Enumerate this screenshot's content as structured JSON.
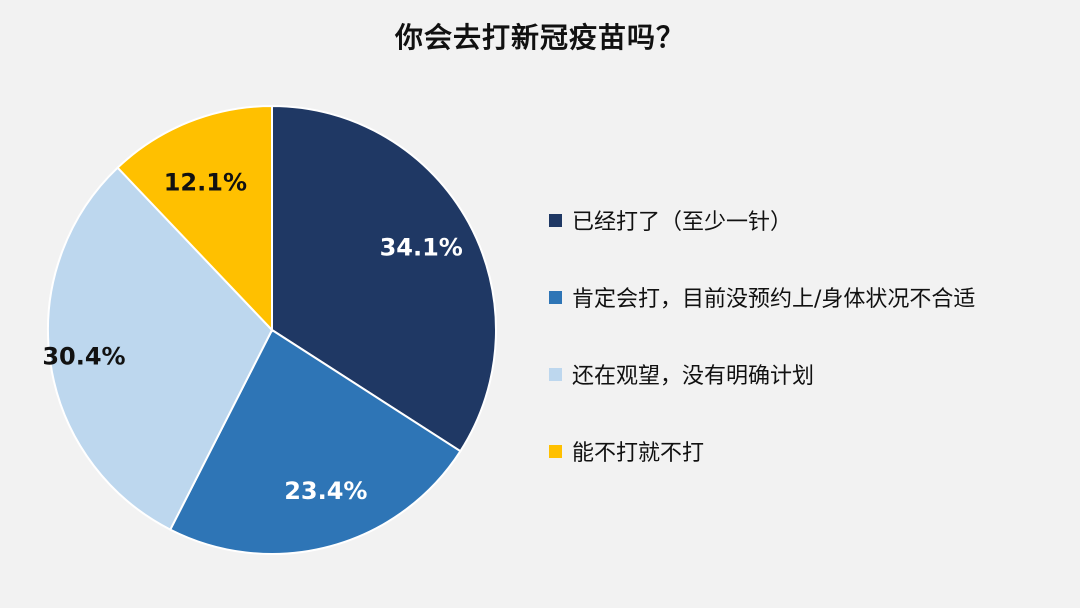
{
  "chart_data": {
    "type": "pie",
    "title": "你会去打新冠疫苗吗？",
    "legend_position": "right",
    "slices": [
      {
        "label": "已经打了（至少一针）",
        "value": 34.1,
        "display": "34.1%",
        "color": "#1f3864",
        "text_color": "#ffffff"
      },
      {
        "label": "肯定会打，目前没预约上/身体状况不合适",
        "value": 23.4,
        "display": "23.4%",
        "color": "#2e75b6",
        "text_color": "#ffffff"
      },
      {
        "label": "还在观望，没有明确计划",
        "value": 30.4,
        "display": "30.4%",
        "color": "#bdd7ee",
        "text_color": "#111111"
      },
      {
        "label": "能不打就不打",
        "value": 12.1,
        "display": "12.1%",
        "color": "#ffc000",
        "text_color": "#111111"
      }
    ]
  }
}
